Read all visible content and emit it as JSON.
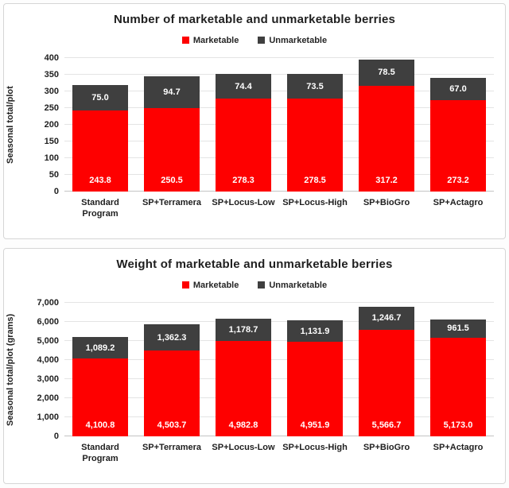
{
  "colors": {
    "marketable": "#fe0000",
    "unmarketable": "#3f3f3f",
    "gridline": "#e4e4e4",
    "axis_text": "#1f1f1f",
    "data_label_text": "#ffffff",
    "panel_border": "#d6d6d6"
  },
  "chart_data": [
    {
      "type": "bar",
      "stacked": true,
      "title": "Number of marketable and unmarketable berries",
      "ylabel": "Seasonal total/plot",
      "xlabel": "",
      "ylim": [
        0,
        400
      ],
      "ytick_step": 50,
      "grid": true,
      "legend_position": "top",
      "categories": [
        "Standard Program",
        "SP+Terramera",
        "SP+Locus-Low",
        "SP+Locus-High",
        "SP+BioGro",
        "SP+Actagro"
      ],
      "series": [
        {
          "name": "Marketable",
          "color_key": "marketable",
          "values": [
            243.8,
            250.5,
            278.3,
            278.5,
            317.2,
            273.2
          ],
          "labels": [
            "243.8",
            "250.5",
            "278.3",
            "278.5",
            "317.2",
            "273.2"
          ]
        },
        {
          "name": "Unmarketable",
          "color_key": "unmarketable",
          "values": [
            75.0,
            94.7,
            74.4,
            73.5,
            78.5,
            67.0
          ],
          "labels": [
            "75.0",
            "94.7",
            "74.4",
            "73.5",
            "78.5",
            "67.0"
          ]
        }
      ]
    },
    {
      "type": "bar",
      "stacked": true,
      "title": "Weight of marketable and unmarketable berries",
      "ylabel": "Seasonal total/plot (grams)",
      "xlabel": "",
      "ylim": [
        0,
        7000
      ],
      "ytick_step": 1000,
      "grid": true,
      "legend_position": "top",
      "categories": [
        "Standard Program",
        "SP+Terramera",
        "SP+Locus-Low",
        "SP+Locus-High",
        "SP+BioGro",
        "SP+Actagro"
      ],
      "series": [
        {
          "name": "Marketable",
          "color_key": "marketable",
          "values": [
            4100.8,
            4503.7,
            4982.8,
            4951.9,
            5566.7,
            5173.0
          ],
          "labels": [
            "4,100.8",
            "4,503.7",
            "4,982.8",
            "4,951.9",
            "5,566.7",
            "5,173.0"
          ]
        },
        {
          "name": "Unmarketable",
          "color_key": "unmarketable",
          "values": [
            1089.2,
            1362.3,
            1178.7,
            1131.9,
            1246.7,
            961.5
          ],
          "labels": [
            "1,089.2",
            "1,362.3",
            "1,178.7",
            "1,131.9",
            "1,246.7",
            "961.5"
          ]
        }
      ]
    }
  ]
}
